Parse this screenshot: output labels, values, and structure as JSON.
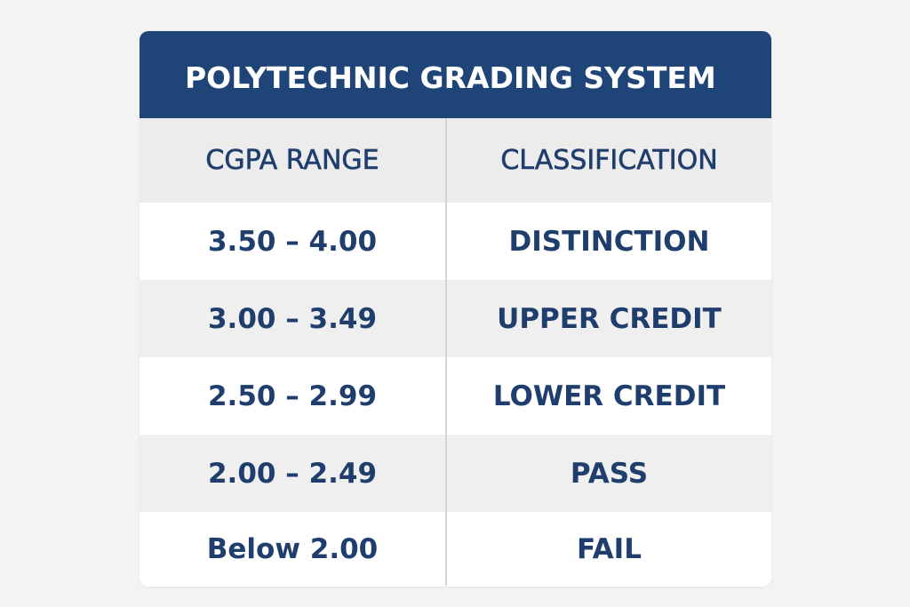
{
  "table": {
    "title": "POLYTECHNIC GRADING SYSTEM",
    "headers": [
      "CGPA RANGE",
      "CLASSIFICATION"
    ],
    "rows": [
      [
        "3.50 – 4.00",
        "DISTINCTION"
      ],
      [
        "3.00 – 3.49",
        "UPPER CREDIT"
      ],
      [
        "2.50 – 2.99",
        "LOWER CREDIT"
      ],
      [
        "2.00 – 2.49",
        "PASS"
      ],
      [
        "Below 2.00",
        "FAIL"
      ]
    ]
  }
}
